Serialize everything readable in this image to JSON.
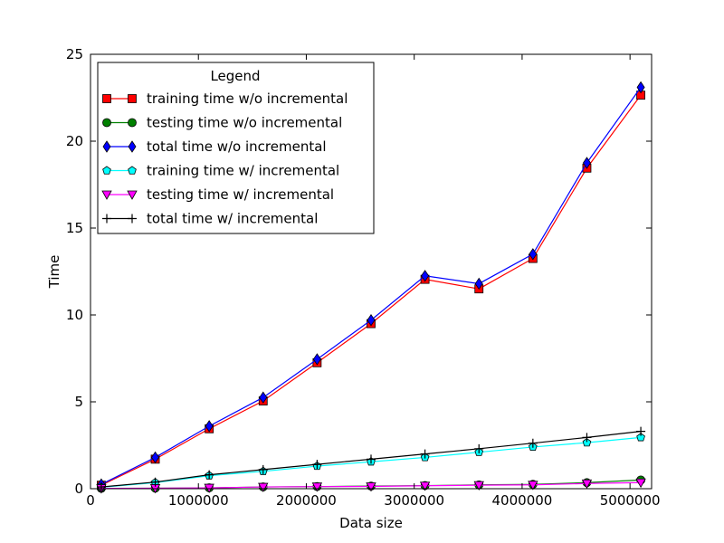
{
  "chart_data": {
    "type": "line",
    "title": "",
    "xlabel": "Data size",
    "ylabel": "Time",
    "xlim": [
      0,
      5200000
    ],
    "ylim": [
      0,
      25
    ],
    "x_ticks": [
      0,
      1000000,
      2000000,
      3000000,
      4000000,
      5000000
    ],
    "x_tick_labels": [
      "0",
      "1000000",
      "2000000",
      "3000000",
      "4000000",
      "5000000"
    ],
    "y_ticks": [
      0,
      5,
      10,
      15,
      20,
      25
    ],
    "y_tick_labels": [
      "0",
      "5",
      "10",
      "15",
      "20",
      "25"
    ],
    "grid": false,
    "legend": {
      "title": "Legend",
      "position": "top-left"
    },
    "x": [
      100000,
      600000,
      1100000,
      1600000,
      2100000,
      2600000,
      3100000,
      3600000,
      4100000,
      4600000,
      5100000
    ],
    "series": [
      {
        "name": "training time w/o incremental",
        "color": "#ff0000",
        "marker": "square",
        "values": [
          0.2,
          1.7,
          3.45,
          5.05,
          7.25,
          9.5,
          12.05,
          11.5,
          13.25,
          18.45,
          22.65
        ]
      },
      {
        "name": "testing time w/o incremental",
        "color": "#008000",
        "marker": "circle",
        "values": [
          0.02,
          0.03,
          0.05,
          0.1,
          0.12,
          0.15,
          0.18,
          0.22,
          0.25,
          0.35,
          0.5
        ]
      },
      {
        "name": "total time w/o incremental",
        "color": "#0000ff",
        "marker": "diamond",
        "values": [
          0.25,
          1.8,
          3.6,
          5.25,
          7.45,
          9.7,
          12.25,
          11.8,
          13.5,
          18.75,
          23.1
        ]
      },
      {
        "name": "training time w/ incremental",
        "color": "#00ffff",
        "marker": "pentagon",
        "values": [
          0.08,
          0.35,
          0.75,
          1.0,
          1.3,
          1.55,
          1.8,
          2.1,
          2.4,
          2.65,
          2.95
        ]
      },
      {
        "name": "testing time w/ incremental",
        "color": "#ff00ff",
        "marker": "triangle-down",
        "values": [
          0.02,
          0.03,
          0.05,
          0.1,
          0.12,
          0.13,
          0.17,
          0.2,
          0.22,
          0.3,
          0.35
        ]
      },
      {
        "name": "total time w/ incremental",
        "color": "#000000",
        "marker": "plus",
        "values": [
          0.1,
          0.38,
          0.8,
          1.1,
          1.4,
          1.7,
          2.0,
          2.3,
          2.62,
          2.95,
          3.3
        ]
      }
    ]
  }
}
